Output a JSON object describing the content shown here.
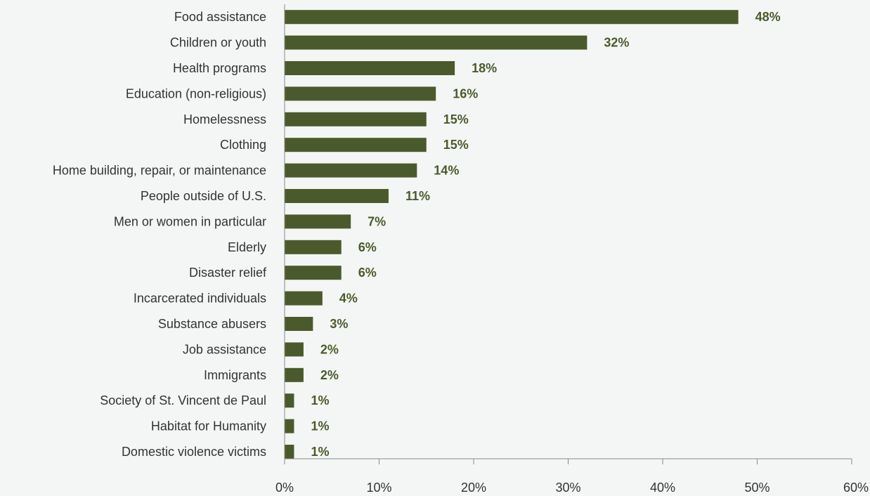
{
  "chart_data": {
    "type": "bar",
    "orientation": "horizontal",
    "categories": [
      "Food assistance",
      "Children or youth",
      "Health programs",
      "Education (non-religious)",
      "Homelessness",
      "Clothing",
      "Home building, repair, or maintenance",
      "People outside of U.S.",
      "Men or women in particular",
      "Elderly",
      "Disaster relief",
      "Incarcerated individuals",
      "Substance abusers",
      "Job assistance",
      "Immigrants",
      "Society of St. Vincent de Paul",
      "Habitat for Humanity",
      "Domestic violence victims"
    ],
    "values": [
      48,
      32,
      18,
      16,
      15,
      15,
      14,
      11,
      7,
      6,
      6,
      4,
      3,
      2,
      2,
      1,
      1,
      1
    ],
    "value_labels": [
      "48%",
      "32%",
      "18%",
      "16%",
      "15%",
      "15%",
      "14%",
      "11%",
      "7%",
      "6%",
      "6%",
      "4%",
      "3%",
      "2%",
      "2%",
      "1%",
      "1%",
      "1%"
    ],
    "xticks": [
      0,
      10,
      20,
      30,
      40,
      50,
      60
    ],
    "xtick_labels": [
      "0%",
      "10%",
      "20%",
      "30%",
      "40%",
      "50%",
      "60%"
    ],
    "xlim": [
      0,
      60
    ],
    "title": "",
    "xlabel": "",
    "ylabel": "",
    "grid": false,
    "legend": "none",
    "bar_color": "#4b5a2c",
    "value_label_color": "#4b5a2c",
    "axis_color": "#888888"
  }
}
